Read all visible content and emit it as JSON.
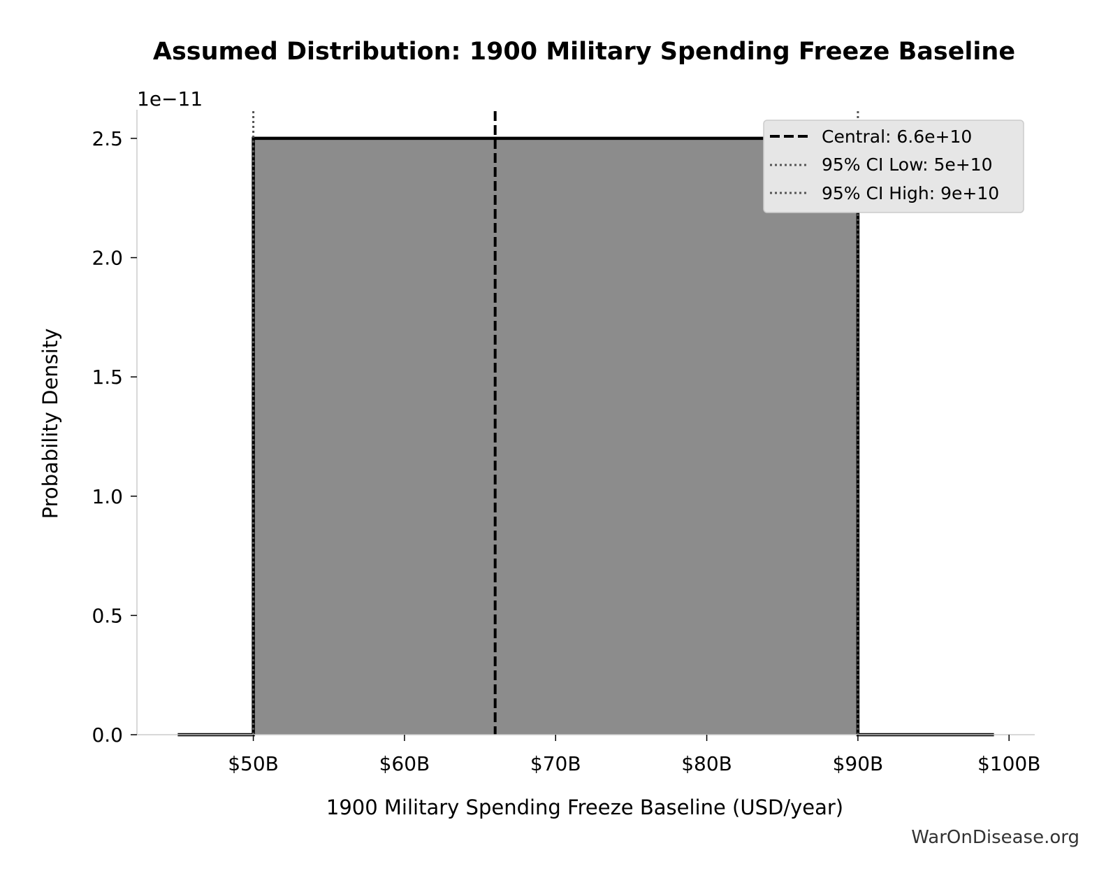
{
  "chart_data": {
    "type": "area",
    "title": "Assumed Distribution: 1900 Military Spending Freeze Baseline",
    "xlabel": "1900 Military Spending Freeze Baseline (USD/year)",
    "ylabel": "Probability Density",
    "y_offset_label": "1e−11",
    "xlim": [
      42300000000,
      101700000000
    ],
    "ylim": [
      0,
      2.62
    ],
    "x_ticks": [
      {
        "value": 50000000000,
        "label": "$50B"
      },
      {
        "value": 60000000000,
        "label": "$60B"
      },
      {
        "value": 70000000000,
        "label": "$70B"
      },
      {
        "value": 80000000000,
        "label": "$80B"
      },
      {
        "value": 90000000000,
        "label": "$90B"
      },
      {
        "value": 100000000000,
        "label": "$100B"
      }
    ],
    "y_ticks": [
      {
        "value": 0.0,
        "label": "0.0"
      },
      {
        "value": 0.5,
        "label": "0.5"
      },
      {
        "value": 1.0,
        "label": "1.0"
      },
      {
        "value": 1.5,
        "label": "1.5"
      },
      {
        "value": 2.0,
        "label": "2.0"
      },
      {
        "value": 2.5,
        "label": "2.5"
      }
    ],
    "series": [
      {
        "x": [
          45000000000,
          50000000000,
          50000000000,
          90000000000,
          90000000000,
          99000000000
        ],
        "y": [
          0,
          0,
          2.5,
          2.5,
          0,
          0
        ],
        "color": "#000000",
        "fill": "#8c8c8c"
      }
    ],
    "reference_lines": [
      {
        "value": 66000000000,
        "style": "dashed",
        "color": "#000000",
        "label": "Central: 6.6e+10"
      },
      {
        "value": 50000000000,
        "style": "dotted",
        "color": "#555555",
        "label": "95% CI Low: 5e+10"
      },
      {
        "value": 90000000000,
        "style": "dotted",
        "color": "#555555",
        "label": "95% CI High: 9e+10"
      }
    ],
    "legend_position": "upper right",
    "grid": false
  },
  "watermark": "WarOnDisease.org"
}
